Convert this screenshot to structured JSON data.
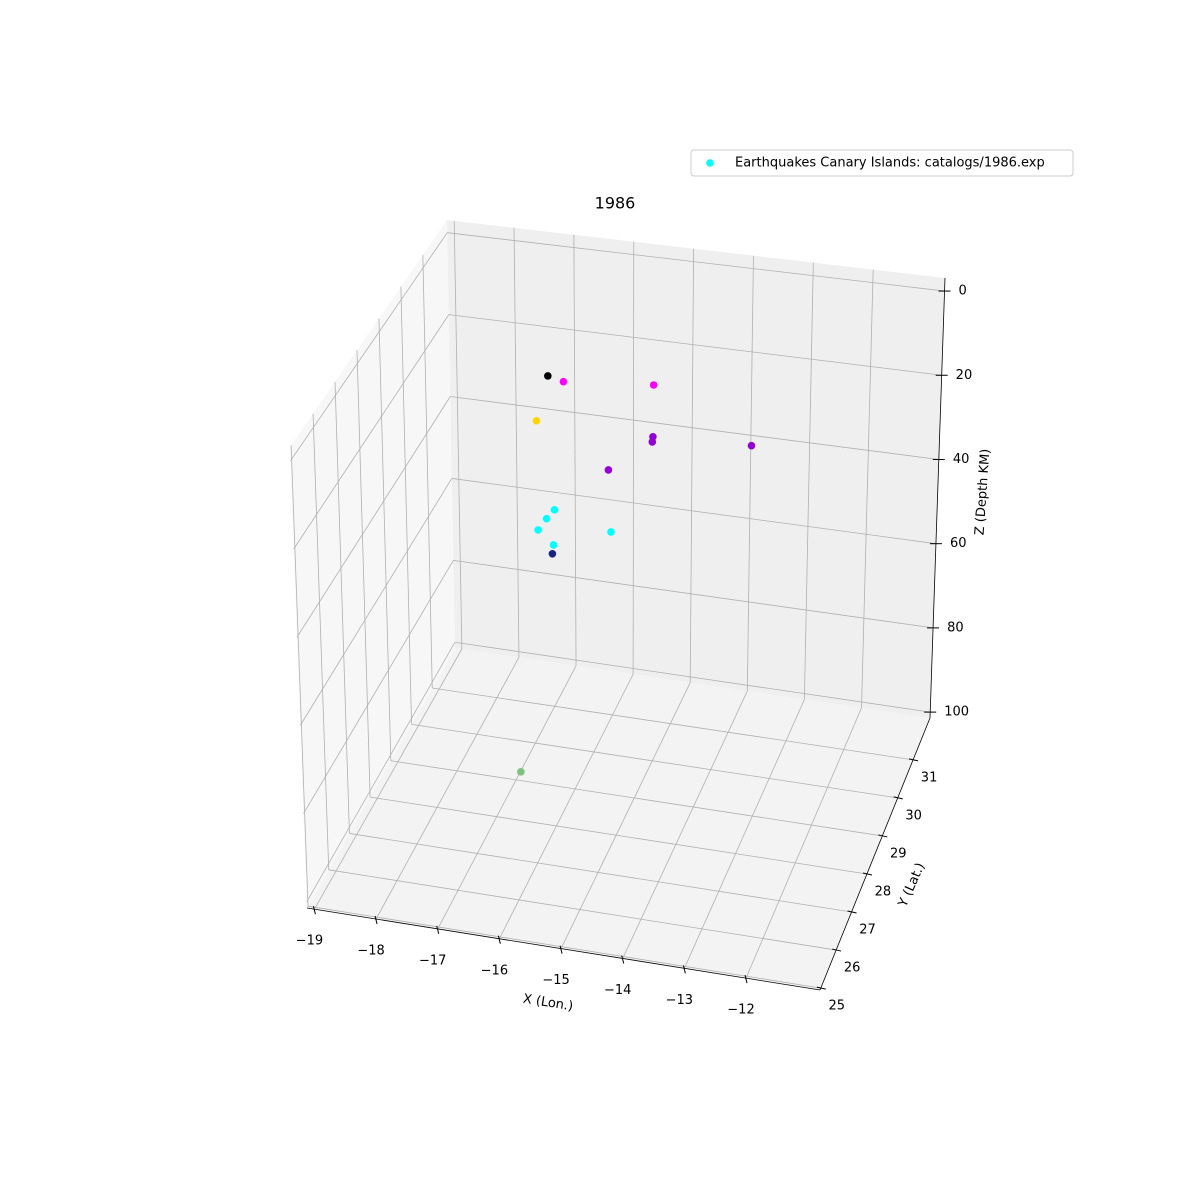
{
  "chart_data": {
    "type": "scatter3d",
    "title": "1986",
    "xlabel": "X (Lon.)",
    "ylabel": "Y (Lat.)",
    "zlabel": "Z (Depth KM)",
    "xlim": [
      -19.12,
      -10.8
    ],
    "ylim": [
      24.95,
      32.1
    ],
    "zlim": [
      101.4,
      -3.1
    ],
    "xticks": [
      {
        "value": -19,
        "label": "−19"
      },
      {
        "value": -18,
        "label": "−18"
      },
      {
        "value": -17,
        "label": "−17"
      },
      {
        "value": -16,
        "label": "−16"
      },
      {
        "value": -15,
        "label": "−15"
      },
      {
        "value": -14,
        "label": "−14"
      },
      {
        "value": -13,
        "label": "−13"
      },
      {
        "value": -12,
        "label": "−12"
      }
    ],
    "yticks": [
      25,
      26,
      27,
      28,
      29,
      30,
      31
    ],
    "zticks": [
      0,
      20,
      40,
      60,
      80,
      100
    ],
    "grid": true,
    "legend": "upper right",
    "series": [
      {
        "name": "Earthquakes Canary Islands: catalogs/1986.exp",
        "color": "#00ffff",
        "x": [
          -16.24,
          -15.99,
          -14.54,
          -16.43,
          -14.55,
          -14.56,
          -12.96,
          -15.27,
          -16.15,
          -16.28,
          -16.42,
          -15.23,
          -16.17,
          -16.19,
          -16.75
        ],
        "y": [
          28.5,
          28.5,
          28.5,
          28.5,
          28.5,
          28.5,
          28.5,
          28.5,
          28.5,
          28.5,
          28.5,
          28.5,
          28.5,
          28.5,
          28.5
        ],
        "z": [
          1.5,
          2.4,
          0.6,
          12.3,
          12.6,
          13.8,
          11.8,
          21.6,
          32.5,
          34.8,
          37.7,
          35.9,
          40.7,
          42.8,
          94.7
        ],
        "point_colors": [
          "#000000",
          "#ff00ff",
          "#ff00ff",
          "#ffd700",
          "#9400d3",
          "#9400d3",
          "#9400d3",
          "#9400d3",
          "#00ffff",
          "#00ffff",
          "#00ffff",
          "#00ffff",
          "#00ffff",
          "#1a237e",
          "#7fbf7f"
        ]
      }
    ]
  }
}
